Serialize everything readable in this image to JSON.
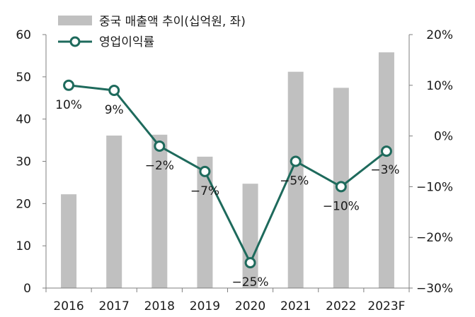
{
  "chart_data": {
    "type": "bar+line",
    "categories": [
      "2016",
      "2017",
      "2018",
      "2019",
      "2020",
      "2021",
      "2022",
      "2023F"
    ],
    "series": [
      {
        "name": "중국 매출액 추이(십억원, 좌)",
        "type": "bar",
        "axis": "left",
        "color": "#c0c0c0",
        "values": [
          22.2,
          36.1,
          36.3,
          31.1,
          24.7,
          51.2,
          47.4,
          55.8
        ]
      },
      {
        "name": "영업이익률",
        "type": "line",
        "axis": "right",
        "color": "#1e6a5c",
        "values": [
          10,
          9,
          -2,
          -7,
          -25,
          -5,
          -10,
          -3
        ],
        "labels": [
          "10%",
          "9%",
          "−2%",
          "−7%",
          "−25%",
          "−5%",
          "−10%",
          "−3%"
        ]
      }
    ],
    "y_left": {
      "min": 0,
      "max": 60,
      "ticks": [
        "0",
        "10",
        "20",
        "30",
        "40",
        "50",
        "60"
      ]
    },
    "y_right": {
      "min": -30,
      "max": 20,
      "ticks": [
        "−30%",
        "−20%",
        "−10%",
        "0%",
        "10%",
        "20%"
      ]
    },
    "legend": {
      "position": "top-left",
      "bar_label": "중국 매출액 추이(십억원, 좌)",
      "line_label": "영업이익률"
    },
    "grid": false
  }
}
